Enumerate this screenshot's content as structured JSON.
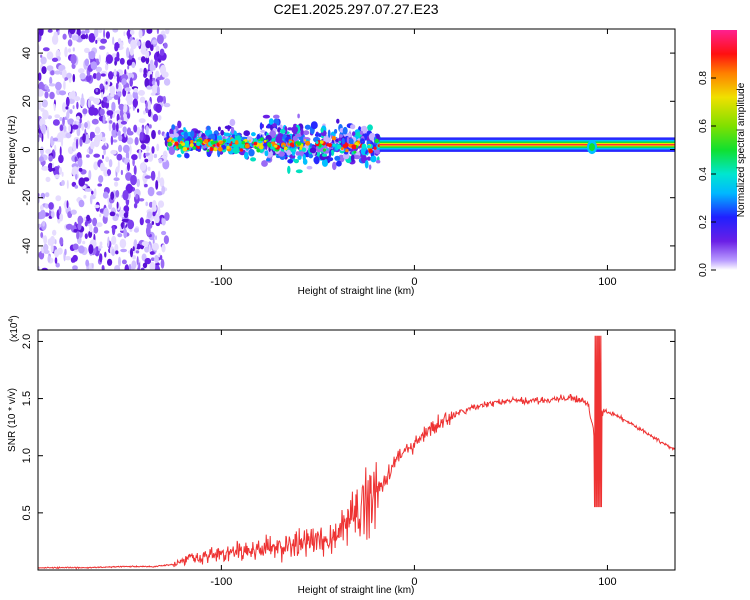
{
  "title": "C2E1.2025.297.07.27.E23",
  "chart_data": [
    {
      "type": "heatmap",
      "name": "spectrogram",
      "xlabel": "Height of straight line (km)",
      "ylabel": "Frequency (Hz)",
      "xlim": [
        -195,
        135
      ],
      "ylim": [
        -50,
        50
      ],
      "xticks": [
        -100,
        0,
        100
      ],
      "yticks": [
        -40,
        -20,
        0,
        20,
        40
      ],
      "colorbar": {
        "label": "Normalized spectral amplitude",
        "range": [
          0,
          1
        ],
        "ticks": [
          0.0,
          0.2,
          0.4,
          0.6,
          0.8
        ],
        "tick_labels": [
          "0.0",
          "0.2",
          "0.4",
          "0.6",
          "0.8"
        ]
      },
      "regions": [
        {
          "x_range": [
            -195,
            -128
          ],
          "freq_range": [
            -50,
            50
          ],
          "amplitude": "low",
          "description": "broadband noise"
        },
        {
          "x_range": [
            -128,
            -18
          ],
          "freq_range": [
            -15,
            15
          ],
          "amplitude": "medium",
          "description": "carrier band with scattered spread"
        },
        {
          "x_range": [
            -18,
            135
          ],
          "center_freq_hz": 2,
          "amplitude": "high",
          "description": "narrow carrier line"
        }
      ],
      "carrier_line": {
        "freq_hz": 2
      }
    },
    {
      "type": "line",
      "name": "snr",
      "xlabel": "Height of straight line (km)",
      "ylabel": "SNR (10 * v/v)",
      "y_scale_label": "(x10",
      "y_scale_exponent": "4",
      "xlim": [
        -195,
        135
      ],
      "ylim": [
        0,
        2.1
      ],
      "xticks": [
        -100,
        0,
        100
      ],
      "yticks": [
        0.5,
        1.0,
        1.5,
        2.0
      ],
      "ytick_labels": [
        "0.5",
        "1.0",
        "1.5",
        "2.0"
      ],
      "series": [
        {
          "name": "SNR",
          "color": "#ee3333",
          "x": [
            -195,
            -170,
            -150,
            -135,
            -125,
            -120,
            -115,
            -110,
            -100,
            -90,
            -80,
            -70,
            -60,
            -50,
            -40,
            -35,
            -30,
            -25,
            -20,
            -15,
            -10,
            -5,
            0,
            5,
            10,
            20,
            30,
            40,
            50,
            60,
            70,
            80,
            85,
            90,
            93,
            95,
            96,
            97,
            98,
            100,
            105,
            110,
            115,
            120,
            125,
            130,
            135
          ],
          "y": [
            0.02,
            0.02,
            0.03,
            0.03,
            0.05,
            0.08,
            0.12,
            0.12,
            0.14,
            0.16,
            0.18,
            0.2,
            0.23,
            0.26,
            0.3,
            0.4,
            0.5,
            0.6,
            0.68,
            0.8,
            0.95,
            1.05,
            1.1,
            1.18,
            1.25,
            1.35,
            1.42,
            1.46,
            1.48,
            1.48,
            1.49,
            1.5,
            1.5,
            1.45,
            1.2,
            1.5,
            1.6,
            1.35,
            1.4,
            1.38,
            1.35,
            1.3,
            1.25,
            1.2,
            1.15,
            1.1,
            1.05
          ]
        }
      ]
    }
  ]
}
